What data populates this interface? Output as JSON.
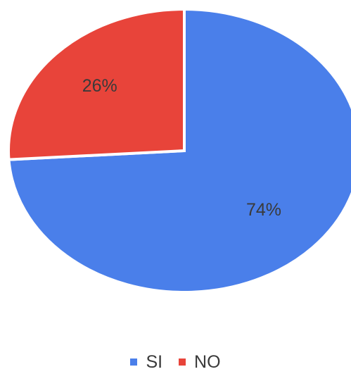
{
  "chart_data": {
    "type": "pie",
    "categories": [
      "SI",
      "NO"
    ],
    "values": [
      74,
      26
    ],
    "labels": [
      "74%",
      "26%"
    ],
    "colors": [
      "#4a7fea",
      "#e8443a"
    ],
    "title": "",
    "legend_position": "bottom"
  },
  "legend": {
    "items": [
      {
        "label": "SI",
        "color": "#4a7fea"
      },
      {
        "label": "NO",
        "color": "#e8443a"
      }
    ]
  }
}
